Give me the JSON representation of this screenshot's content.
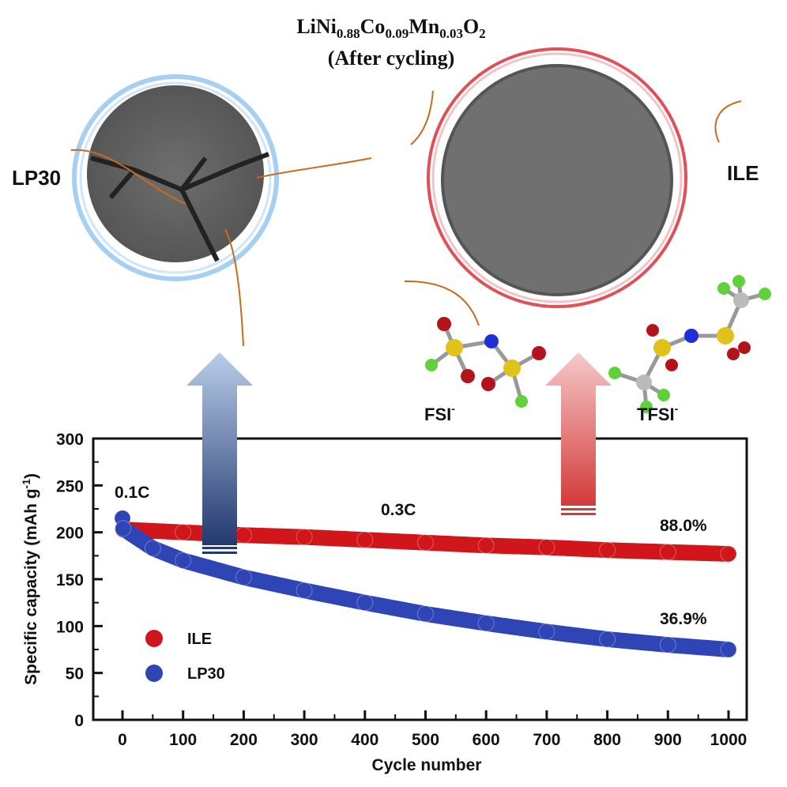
{
  "figure": {
    "title_main": "LiNi",
    "title_sub1": "0.88",
    "title_co": "Co",
    "title_sub2": "0.09",
    "title_mn": "Mn",
    "title_sub3": "0.03",
    "title_o": "O",
    "title_sub4": "2",
    "title_line2": "(After cycling)",
    "label_left": "LP30",
    "label_right": "ILE",
    "anion1": "FSI",
    "anion1_sup": "-",
    "anion2": "TFSI",
    "anion2_sup": "-",
    "colors": {
      "ILE": "#d0161b",
      "LP30": "#2f45b5",
      "ring_left": "#8fc4f0",
      "ring_right": "#e0505a",
      "arrows": "#c96a1e"
    }
  },
  "chart_data": {
    "type": "scatter",
    "xlabel": "Cycle number",
    "ylabel": "Specific capacity (mAh g",
    "ylabel_sup": "-1",
    "ylabel_end": ")",
    "xlim": [
      -50,
      1030
    ],
    "ylim": [
      0,
      300
    ],
    "xticks": [
      "0",
      "100",
      "200",
      "300",
      "400",
      "500",
      "600",
      "700",
      "800",
      "900",
      "1000"
    ],
    "yticks": [
      "0",
      "50",
      "100",
      "150",
      "200",
      "250",
      "300"
    ],
    "annotations": {
      "rate1": "0.1C",
      "rate2": "0.3C",
      "ile_retention": "88.0%",
      "lp30_retention": "36.9%"
    },
    "legend_placement": "bottom-left",
    "series": [
      {
        "name": "ILE",
        "color": "#d0161b",
        "x": [
          0,
          1,
          100,
          200,
          300,
          400,
          500,
          600,
          700,
          800,
          900,
          1000
        ],
        "y": [
          215,
          203,
          200,
          197,
          195,
          192,
          189,
          186,
          184,
          181,
          179,
          177
        ]
      },
      {
        "name": "LP30",
        "color": "#2f45b5",
        "x": [
          0,
          1,
          50,
          100,
          200,
          300,
          400,
          500,
          600,
          700,
          800,
          900,
          1000
        ],
        "y": [
          215,
          204,
          183,
          170,
          152,
          138,
          125,
          113,
          103,
          94,
          86,
          80,
          75
        ]
      }
    ]
  }
}
